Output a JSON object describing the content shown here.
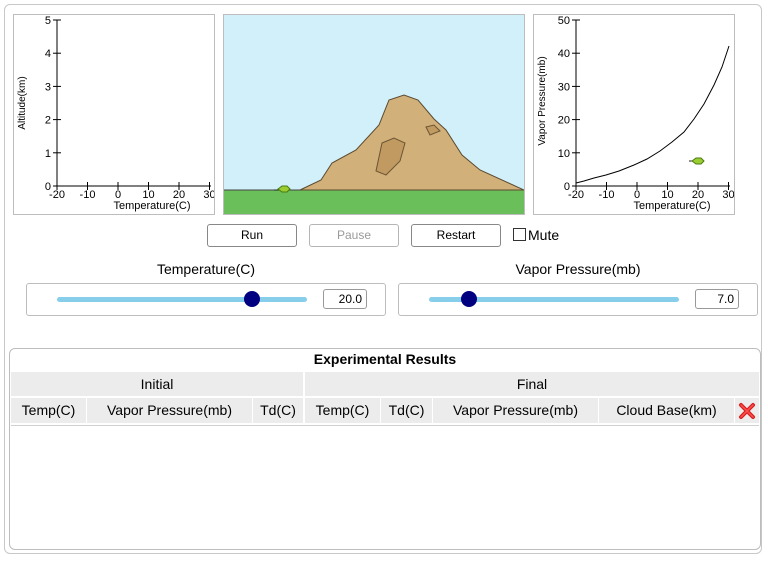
{
  "altitude_graph": {
    "ylabel": "Altitude(km)",
    "xlabel": "Temperature(C)",
    "x_ticks": [
      "-20",
      "-10",
      "0",
      "10",
      "20",
      "30"
    ],
    "y_ticks": [
      "0",
      "1",
      "2",
      "3",
      "4",
      "5"
    ]
  },
  "vapor_graph": {
    "ylabel": "Vapor Pressure(mb)",
    "xlabel": "Temperature(C)",
    "x_ticks": [
      "-20",
      "-10",
      "0",
      "10",
      "20",
      "30"
    ],
    "y_ticks": [
      "0",
      "10",
      "20",
      "30",
      "40",
      "50"
    ]
  },
  "controls": {
    "run_label": "Run",
    "pause_label": "Pause",
    "restart_label": "Restart",
    "mute_label": "Mute",
    "mute_checked": false
  },
  "sliders": {
    "temperature": {
      "label": "Temperature(C)",
      "value": "20.0",
      "fraction": 0.78
    },
    "vapor_pressure": {
      "label": "Vapor Pressure(mb)",
      "value": "7.0",
      "fraction": 0.16
    }
  },
  "results": {
    "title": "Experimental Results",
    "group_initial": "Initial",
    "group_final": "Final",
    "columns": [
      "Temp(C)",
      "Vapor Pressure(mb)",
      "Td(C)",
      "Temp(C)",
      "Td(C)",
      "Vapor Pressure(mb)",
      "Cloud Base(km)"
    ],
    "clear_icon": "red-x-delete-icon"
  },
  "colors": {
    "sky": "#d2f0fa",
    "ground": "#6abf5a",
    "mountain": "#d2b07a",
    "slider_track": "#87ceeb",
    "slider_thumb": "#000080",
    "parcel": "#9acd32"
  }
}
